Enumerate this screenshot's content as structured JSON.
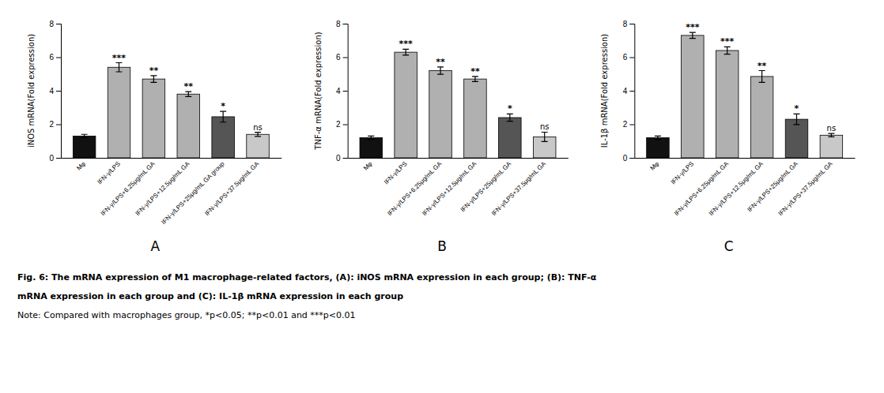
{
  "chart_data": [
    {
      "type": "bar",
      "title": "A",
      "ylabel": "iNOS mRNA(Fold expression)",
      "categories": [
        "Mφ",
        "IFN-γ/LPS",
        "IFN-γ/LPS+6.25μg/mL GA",
        "IFN-γ/LPS+12.5μg/mL GA",
        "IFN-γ/LPS+25μg/mL GA group",
        "IFN-γ/LPS+37.5μg/mL GA"
      ],
      "values": [
        1.3,
        5.4,
        4.7,
        3.8,
        2.45,
        1.4
      ],
      "errors": [
        0.1,
        0.27,
        0.2,
        0.15,
        0.32,
        0.12
      ],
      "annotations": [
        null,
        "***",
        "**",
        "**",
        "*",
        "ns"
      ],
      "colors": [
        "#111111",
        "#b0b0b0",
        "#b0b0b0",
        "#b0b0b0",
        "#555555",
        "#c8c8c8"
      ],
      "ylim": [
        0,
        8
      ],
      "yticks": [
        0,
        2,
        4,
        6,
        8
      ],
      "grid": false
    },
    {
      "type": "bar",
      "title": "B",
      "ylabel": "TNF-α mRNA(Fold expression)",
      "categories": [
        "Mφ",
        "IFN-γ/LPS",
        "IFN-γ/LPS+6.25μg/mL GA",
        "IFN-γ/LPS+12.5μg/mL GA",
        "IFN-γ/LPS+25μg/mL GA",
        "IFN-γ/LPS+37.5μg/mL GA"
      ],
      "values": [
        1.2,
        6.3,
        5.2,
        4.7,
        2.4,
        1.25
      ],
      "errors": [
        0.1,
        0.18,
        0.22,
        0.15,
        0.22,
        0.28
      ],
      "annotations": [
        null,
        "***",
        "**",
        "**",
        "*",
        "ns"
      ],
      "colors": [
        "#111111",
        "#b0b0b0",
        "#b0b0b0",
        "#b0b0b0",
        "#555555",
        "#c8c8c8"
      ],
      "ylim": [
        0,
        8
      ],
      "yticks": [
        0,
        2,
        4,
        6,
        8
      ],
      "grid": false
    },
    {
      "type": "bar",
      "title": "C",
      "ylabel": "IL-1β mRNA(Fold expression)",
      "categories": [
        "Mφ",
        "IFN-γ/LPS",
        "IFN-γ/LPS+6.25μg/mL GA",
        "IFN-γ/LPS+12.5μg/mL GA",
        "IFN-γ/LPS+25μg/mL GA",
        "IFN-γ/LPS+37.5μg/mL GA"
      ],
      "values": [
        1.2,
        7.3,
        6.4,
        4.85,
        2.3,
        1.35
      ],
      "errors": [
        0.1,
        0.18,
        0.22,
        0.35,
        0.32,
        0.1
      ],
      "annotations": [
        null,
        "***",
        "***",
        "**",
        "*",
        "ns"
      ],
      "colors": [
        "#111111",
        "#b0b0b0",
        "#b0b0b0",
        "#b0b0b0",
        "#555555",
        "#c8c8c8"
      ],
      "ylim": [
        0,
        8
      ],
      "yticks": [
        0,
        2,
        4,
        6,
        8
      ],
      "grid": false
    }
  ],
  "annotations": [
    "Fig. 6: The mRNA expression of M1 macrophage-related factors, (A): iNOS mRNA expression in each group; (B): TNF-α",
    "mRNA expression in each group and (C): IL-1β mRNA expression in each group",
    "Note: Compared with macrophages group, *p<0.05; **p<0.01 and ***p<0.01"
  ]
}
